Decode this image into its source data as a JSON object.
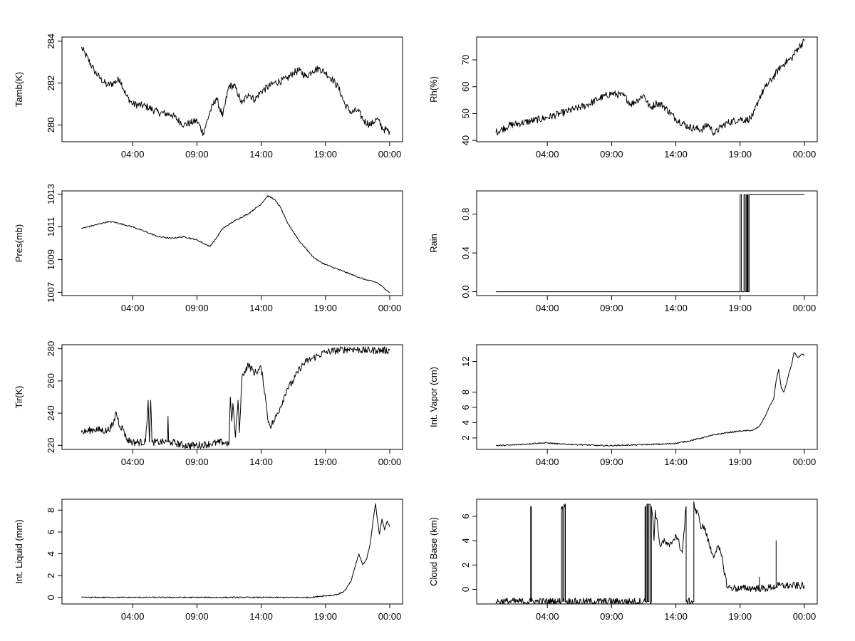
{
  "chart_data": [
    {
      "type": "line",
      "ylabel": "Tamb(K)",
      "x_unit": "hours since 00:00",
      "x_ticks": [
        {
          "value": 4,
          "label": "04:00"
        },
        {
          "value": 9,
          "label": "09:00"
        },
        {
          "value": 14,
          "label": "14:00"
        },
        {
          "value": 19,
          "label": "19:00"
        },
        {
          "value": 24,
          "label": "00:00"
        }
      ],
      "y_ticks": [
        280,
        282,
        284
      ],
      "ylim": [
        279.2,
        284.2
      ],
      "series": [
        {
          "style": "noisy",
          "x": [
            0.0,
            0.3,
            1.0,
            1.5,
            2.0,
            2.5,
            3.0,
            3.5,
            4.0,
            5.0,
            6.0,
            7.0,
            8.0,
            8.5,
            9.0,
            9.5,
            10.0,
            10.5,
            11.0,
            11.5,
            12.0,
            12.5,
            13.0,
            13.5,
            14.0,
            15.0,
            16.0,
            16.5,
            17.0,
            17.5,
            18.0,
            18.5,
            19.0,
            19.5,
            20.0,
            20.5,
            21.0,
            21.5,
            22.0,
            22.5,
            23.0,
            23.5,
            24.0
          ],
          "y": [
            283.7,
            283.4,
            282.6,
            282.2,
            281.9,
            282.0,
            282.2,
            281.4,
            281.0,
            280.9,
            280.6,
            280.5,
            280.0,
            280.1,
            280.2,
            279.6,
            280.6,
            281.3,
            280.4,
            281.9,
            281.8,
            281.0,
            281.5,
            281.2,
            281.6,
            282.0,
            282.2,
            282.5,
            282.6,
            282.3,
            282.6,
            282.7,
            282.5,
            282.2,
            281.8,
            281.0,
            280.6,
            280.7,
            280.2,
            280.0,
            280.3,
            279.8,
            279.7
          ]
        }
      ]
    },
    {
      "type": "line",
      "ylabel": "Rh(%)",
      "x_unit": "hours since 00:00",
      "x_ticks": [
        {
          "value": 4,
          "label": "04:00"
        },
        {
          "value": 9,
          "label": "09:00"
        },
        {
          "value": 14,
          "label": "14:00"
        },
        {
          "value": 19,
          "label": "19:00"
        },
        {
          "value": 24,
          "label": "00:00"
        }
      ],
      "y_ticks": [
        40,
        50,
        60,
        70
      ],
      "ylim": [
        39.5,
        78.5
      ],
      "series": [
        {
          "style": "noisy",
          "x": [
            0.0,
            1.0,
            2.0,
            3.0,
            4.0,
            5.0,
            6.0,
            7.0,
            8.0,
            9.0,
            10.0,
            10.5,
            11.0,
            11.5,
            12.0,
            12.5,
            13.0,
            14.0,
            15.0,
            16.0,
            16.5,
            17.0,
            17.5,
            18.0,
            19.0,
            19.5,
            20.0,
            20.5,
            21.0,
            21.5,
            22.0,
            22.5,
            23.0,
            23.5,
            24.0
          ],
          "y": [
            43.0,
            45.5,
            46.5,
            47.5,
            48.5,
            50.0,
            51.5,
            53.0,
            55.5,
            57.5,
            56.5,
            53.5,
            55.0,
            57.0,
            52.0,
            54.0,
            53.0,
            48.0,
            45.0,
            44.0,
            46.0,
            42.5,
            45.0,
            46.5,
            48.0,
            47.5,
            49.0,
            56.0,
            60.0,
            63.0,
            66.5,
            69.0,
            70.5,
            74.5,
            77.0
          ]
        }
      ]
    },
    {
      "type": "line",
      "ylabel": "Pres(mb)",
      "x_unit": "hours since 00:00",
      "x_ticks": [
        {
          "value": 4,
          "label": "04:00"
        },
        {
          "value": 9,
          "label": "09:00"
        },
        {
          "value": 14,
          "label": "14:00"
        },
        {
          "value": 19,
          "label": "19:00"
        },
        {
          "value": 24,
          "label": "00:00"
        }
      ],
      "y_ticks": [
        1007,
        1009,
        1011,
        1013
      ],
      "ylim": [
        1006.8,
        1013.2
      ],
      "series": [
        {
          "style": "fine",
          "x": [
            0.0,
            1.0,
            2.0,
            2.5,
            3.0,
            4.0,
            5.0,
            6.0,
            7.0,
            8.0,
            9.0,
            10.0,
            10.5,
            11.0,
            12.0,
            13.0,
            14.0,
            14.5,
            15.0,
            15.5,
            16.0,
            17.0,
            18.0,
            18.5,
            19.0,
            20.0,
            21.0,
            22.0,
            23.0,
            23.5,
            24.0
          ],
          "y": [
            1010.9,
            1011.1,
            1011.3,
            1011.3,
            1011.2,
            1011.0,
            1010.7,
            1010.4,
            1010.3,
            1010.4,
            1010.2,
            1009.8,
            1010.3,
            1010.9,
            1011.4,
            1011.8,
            1012.4,
            1012.9,
            1012.7,
            1012.2,
            1011.3,
            1010.1,
            1009.2,
            1008.9,
            1008.7,
            1008.4,
            1008.1,
            1007.8,
            1007.6,
            1007.3,
            1007.0
          ]
        }
      ]
    },
    {
      "type": "line",
      "ylabel": "Rain",
      "x_unit": "hours since 00:00",
      "x_ticks": [
        {
          "value": 4,
          "label": "04:00"
        },
        {
          "value": 9,
          "label": "09:00"
        },
        {
          "value": 14,
          "label": "14:00"
        },
        {
          "value": 19,
          "label": "19:00"
        },
        {
          "value": 24,
          "label": "00:00"
        }
      ],
      "y_ticks": [
        0.0,
        0.4,
        0.8
      ],
      "y_tick_labels": [
        "0.0",
        "0.4",
        "0.8"
      ],
      "ylim": [
        -0.04,
        1.04
      ],
      "series": [
        {
          "style": "plain",
          "x": [
            0.0,
            19.0,
            19.0,
            19.1,
            19.1,
            19.3,
            19.3,
            19.4,
            19.4,
            19.5,
            19.5,
            19.55,
            19.55,
            19.6,
            19.6,
            19.62,
            19.62,
            19.7,
            19.7,
            19.75,
            19.75,
            24.0
          ],
          "y": [
            0,
            0,
            1,
            1,
            0,
            0,
            1,
            1,
            0,
            0,
            1,
            1,
            0,
            0,
            1,
            1,
            0,
            0,
            1,
            1,
            1,
            1
          ]
        }
      ]
    },
    {
      "type": "line",
      "ylabel": "Tir(K)",
      "x_unit": "hours since 00:00",
      "x_ticks": [
        {
          "value": 4,
          "label": "04:00"
        },
        {
          "value": 9,
          "label": "09:00"
        },
        {
          "value": 14,
          "label": "14:00"
        },
        {
          "value": 19,
          "label": "19:00"
        },
        {
          "value": 24,
          "label": "00:00"
        }
      ],
      "y_ticks": [
        220,
        240,
        260,
        280
      ],
      "ylim": [
        217.5,
        282.5
      ],
      "series": [
        {
          "style": "noisy",
          "x": [
            0.0,
            0.5,
            1.0,
            2.0,
            2.5,
            2.7,
            3.0,
            3.3,
            3.5,
            4.0,
            5.0,
            5.2,
            5.3,
            5.4,
            5.5,
            5.6,
            6.0,
            6.7,
            6.75,
            6.8,
            7.0,
            8.0,
            9.0,
            10.0,
            11.0,
            11.5,
            11.6,
            11.7,
            11.8,
            12.0,
            12.2,
            12.3,
            12.5,
            12.7,
            13.0,
            13.5,
            14.0,
            14.3,
            14.5,
            14.7,
            15.0,
            15.5,
            16.0,
            16.5,
            17.0,
            17.5,
            18.0,
            18.5,
            19.0,
            20.0,
            21.0,
            22.0,
            23.0,
            24.0
          ],
          "y": [
            228,
            229,
            230,
            229,
            233,
            241,
            232,
            230,
            224,
            222,
            222,
            248,
            222,
            248,
            222,
            222,
            222,
            222,
            238,
            222,
            222,
            220,
            220,
            221,
            222,
            221,
            250,
            235,
            246,
            225,
            248,
            228,
            262,
            266,
            270,
            265,
            268,
            252,
            237,
            232,
            235,
            244,
            255,
            260,
            268,
            272,
            274,
            276,
            278,
            279,
            280,
            279,
            279,
            279
          ]
        }
      ]
    },
    {
      "type": "line",
      "ylabel": "Int. Vapor (cm)",
      "x_unit": "hours since 00:00",
      "x_ticks": [
        {
          "value": 4,
          "label": "04:00"
        },
        {
          "value": 9,
          "label": "09:00"
        },
        {
          "value": 14,
          "label": "14:00"
        },
        {
          "value": 19,
          "label": "19:00"
        },
        {
          "value": 24,
          "label": "00:00"
        }
      ],
      "y_ticks": [
        2,
        4,
        6,
        8,
        12
      ],
      "ylim": [
        0.5,
        14.2
      ],
      "series": [
        {
          "style": "fine",
          "x": [
            0.0,
            1.0,
            2.0,
            3.0,
            4.0,
            5.0,
            6.0,
            7.0,
            8.0,
            9.0,
            10.0,
            11.0,
            12.0,
            13.0,
            14.0,
            15.0,
            16.0,
            17.0,
            18.0,
            19.0,
            20.0,
            20.5,
            21.0,
            21.3,
            21.6,
            21.8,
            22.0,
            22.2,
            22.4,
            22.6,
            22.8,
            23.0,
            23.2,
            23.5,
            23.8,
            24.0
          ],
          "y": [
            1.0,
            1.05,
            1.15,
            1.3,
            1.35,
            1.2,
            1.15,
            1.1,
            1.0,
            1.0,
            1.05,
            1.1,
            1.15,
            1.2,
            1.3,
            1.6,
            2.0,
            2.4,
            2.7,
            2.9,
            3.0,
            3.5,
            5.0,
            6.2,
            7.0,
            9.5,
            11.0,
            8.5,
            8.0,
            9.0,
            10.5,
            11.5,
            13.2,
            12.5,
            13.0,
            12.8
          ]
        }
      ]
    },
    {
      "type": "line",
      "ylabel": "Int. Liquid (mm)",
      "x_unit": "hours since 00:00",
      "x_ticks": [
        {
          "value": 4,
          "label": "04:00"
        },
        {
          "value": 9,
          "label": "09:00"
        },
        {
          "value": 14,
          "label": "14:00"
        },
        {
          "value": 19,
          "label": "19:00"
        },
        {
          "value": 24,
          "label": "00:00"
        }
      ],
      "y_ticks": [
        0,
        2,
        4,
        6,
        8
      ],
      "ylim": [
        -0.6,
        9.0
      ],
      "series": [
        {
          "style": "fine",
          "x": [
            0.0,
            17.9,
            18.5,
            19.0,
            19.5,
            20.0,
            20.5,
            21.0,
            21.3,
            21.6,
            21.9,
            22.2,
            22.5,
            22.7,
            22.9,
            23.0,
            23.2,
            23.4,
            23.6,
            23.8,
            24.0
          ],
          "y": [
            0.0,
            0.0,
            0.1,
            0.15,
            0.2,
            0.3,
            0.6,
            1.5,
            2.8,
            4.0,
            3.0,
            3.5,
            5.0,
            7.0,
            8.6,
            7.5,
            5.8,
            7.2,
            6.2,
            7.0,
            6.5
          ]
        }
      ]
    },
    {
      "type": "line",
      "ylabel": "Cloud Base (km)",
      "x_unit": "hours since 00:00",
      "x_ticks": [
        {
          "value": 4,
          "label": "04:00"
        },
        {
          "value": 9,
          "label": "09:00"
        },
        {
          "value": 14,
          "label": "14:00"
        },
        {
          "value": 19,
          "label": "19:00"
        },
        {
          "value": 24,
          "label": "00:00"
        }
      ],
      "y_ticks": [
        0,
        2,
        4,
        6
      ],
      "ylim": [
        -1.2,
        7.4
      ],
      "series": [
        {
          "style": "noisy",
          "x": [
            0.0,
            2.7,
            2.7,
            2.75,
            2.75,
            5.1,
            5.1,
            5.2,
            5.2,
            5.3,
            5.3,
            5.4,
            5.4,
            11.6,
            11.6,
            11.65,
            11.65,
            11.75,
            11.75,
            11.8,
            11.8,
            11.9,
            11.9,
            12.0,
            12.0,
            12.1,
            12.1,
            12.2,
            12.3,
            12.4,
            12.6,
            12.8,
            13.0,
            13.5,
            14.0,
            14.5,
            14.8,
            14.8,
            15.4,
            15.4,
            15.5,
            15.8,
            16.0,
            16.2,
            16.5,
            16.8,
            17.0,
            17.2,
            17.5,
            18.0,
            18.5,
            19.0,
            19.5,
            20.0,
            20.5,
            20.5,
            20.5,
            21.0,
            21.5,
            21.8,
            21.8,
            21.8,
            22.0,
            23.0,
            24.0
          ],
          "y": [
            -1.0,
            -1.0,
            6.8,
            6.8,
            -1.0,
            -1.0,
            6.8,
            6.8,
            -1.0,
            -1.0,
            7.0,
            7.0,
            -1.0,
            -1.0,
            6.8,
            6.8,
            -1.0,
            -1.0,
            7.0,
            7.0,
            -1.0,
            -1.0,
            7.0,
            7.0,
            -1.0,
            -1.0,
            6.8,
            6.0,
            4.0,
            6.5,
            5.0,
            3.5,
            4.0,
            3.5,
            4.5,
            3.0,
            6.8,
            -1.0,
            -1.0,
            7.2,
            6.5,
            6.0,
            5.0,
            5.2,
            4.0,
            3.0,
            2.8,
            3.5,
            3.0,
            0.2,
            0.1,
            0.05,
            0.1,
            0.1,
            0.1,
            1.0,
            0.1,
            0.05,
            0.2,
            0.2,
            4.0,
            0.3,
            0.3,
            0.3,
            0.3
          ]
        }
      ]
    }
  ]
}
